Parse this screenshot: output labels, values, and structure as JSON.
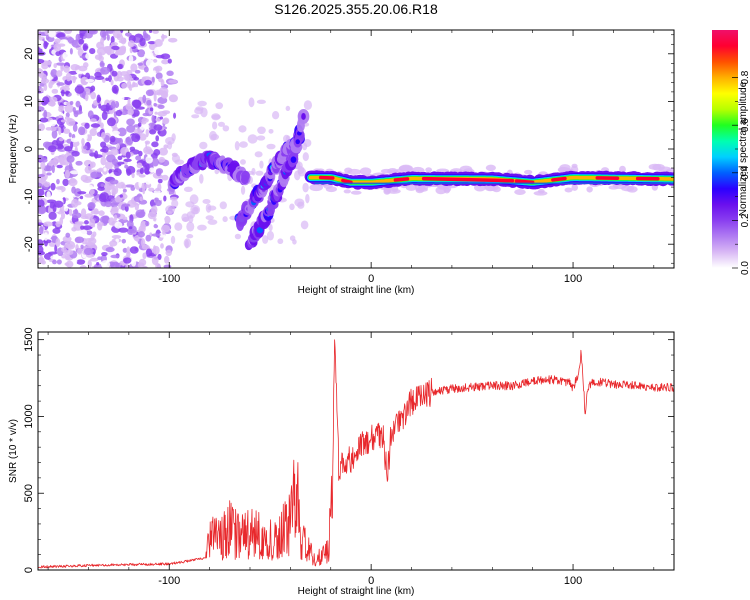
{
  "title": "S126.2025.355.20.06.R18",
  "chart_data": [
    {
      "type": "heatmap",
      "name": "spectrogram",
      "xlabel": "Height of straight line (km)",
      "ylabel": "Frequency (Hz)",
      "xlim": [
        -165,
        150
      ],
      "ylim": [
        -25,
        25
      ],
      "xticks": [
        -100,
        0,
        100
      ],
      "yticks": [
        -20,
        -10,
        0,
        10,
        20
      ],
      "xtick_labels": [
        "-100",
        "0",
        "100"
      ],
      "ytick_labels": [
        "-20",
        "-10",
        "0",
        "10",
        "20"
      ],
      "colorbar": {
        "label": "Normalized spectral amplitude",
        "range": [
          0,
          1
        ],
        "ticks": [
          0.0,
          0.2,
          0.4,
          0.6,
          0.8
        ],
        "tick_labels": [
          "0.0",
          "0.2",
          "0.4",
          "0.6",
          "0.8"
        ],
        "colors": [
          "#ffffff",
          "#d9b8f5",
          "#b07cf2",
          "#8a3ff0",
          "#6a10ee",
          "#2b00ff",
          "#0060ff",
          "#00d0ff",
          "#00ffb0",
          "#20ff20",
          "#b8ff00",
          "#ffff00",
          "#ffb000",
          "#ff5000",
          "#ff0030",
          "#f0106a"
        ]
      },
      "features": [
        {
          "name": "noise region",
          "x_range": [
            -165,
            -95
          ],
          "y_range": [
            -25,
            25
          ],
          "amplitude": 0.08
        },
        {
          "name": "oblique streak 1",
          "points": [
            [
              -98,
              -7
            ],
            [
              -90,
              -4
            ],
            [
              -80,
              -2
            ],
            [
              -70,
              -4
            ],
            [
              -62,
              -6
            ]
          ],
          "amplitude": 0.3
        },
        {
          "name": "oblique streak 2",
          "points": [
            [
              -65,
              -15
            ],
            [
              -55,
              -9
            ],
            [
              -45,
              -2
            ],
            [
              -35,
              3
            ]
          ],
          "amplitude": 0.3
        },
        {
          "name": "oblique streak 3",
          "points": [
            [
              -60,
              -20
            ],
            [
              -52,
              -14
            ],
            [
              -44,
              -7
            ],
            [
              -38,
              -1
            ],
            [
              -34,
              7
            ]
          ],
          "amplitude": 0.3
        },
        {
          "name": "carrier line",
          "points": [
            [
              -30,
              -6
            ],
            [
              -20,
              -6
            ],
            [
              -10,
              -7
            ],
            [
              0,
              -7
            ],
            [
              20,
              -6.2
            ],
            [
              60,
              -6.3
            ],
            [
              80,
              -7
            ],
            [
              100,
              -6
            ],
            [
              150,
              -6.3
            ]
          ],
          "amplitude": 0.9
        }
      ]
    },
    {
      "type": "line",
      "name": "snr",
      "xlabel": "Height of straight line (km)",
      "ylabel": "SNR (10 * v/v)",
      "xlim": [
        -165,
        150
      ],
      "ylim": [
        0,
        1550
      ],
      "xticks": [
        -100,
        0,
        100
      ],
      "yticks": [
        0,
        500,
        1000,
        1500
      ],
      "xtick_labels": [
        "-100",
        "0",
        "100"
      ],
      "ytick_labels": [
        "0",
        "500",
        "1000",
        "1500"
      ],
      "color": "#e8282c",
      "series": [
        {
          "name": "SNR",
          "x": [
            -165,
            -150,
            -140,
            -120,
            -100,
            -90,
            -82,
            -80,
            -75,
            -70,
            -65,
            -60,
            -55,
            -50,
            -45,
            -40,
            -37,
            -35,
            -32,
            -30,
            -27,
            -24,
            -21,
            -19,
            -18,
            -16,
            -13,
            -10,
            -7,
            -4,
            0,
            3,
            6,
            8,
            10,
            13,
            17,
            20,
            25,
            30,
            40,
            50,
            60,
            70,
            80,
            90,
            98,
            100,
            103,
            104,
            105,
            106,
            107,
            110,
            115,
            120,
            130,
            140,
            150
          ],
          "y": [
            20,
            25,
            30,
            35,
            40,
            60,
            80,
            300,
            250,
            350,
            270,
            320,
            300,
            250,
            300,
            420,
            700,
            280,
            200,
            150,
            100,
            120,
            200,
            700,
            1550,
            650,
            700,
            720,
            760,
            820,
            850,
            900,
            860,
            600,
            900,
            960,
            1020,
            1100,
            1120,
            1160,
            1180,
            1190,
            1200,
            1200,
            1230,
            1240,
            1220,
            1180,
            1300,
            1420,
            1250,
            1000,
            1180,
            1230,
            1220,
            1210,
            1200,
            1190,
            1190
          ]
        }
      ]
    }
  ]
}
